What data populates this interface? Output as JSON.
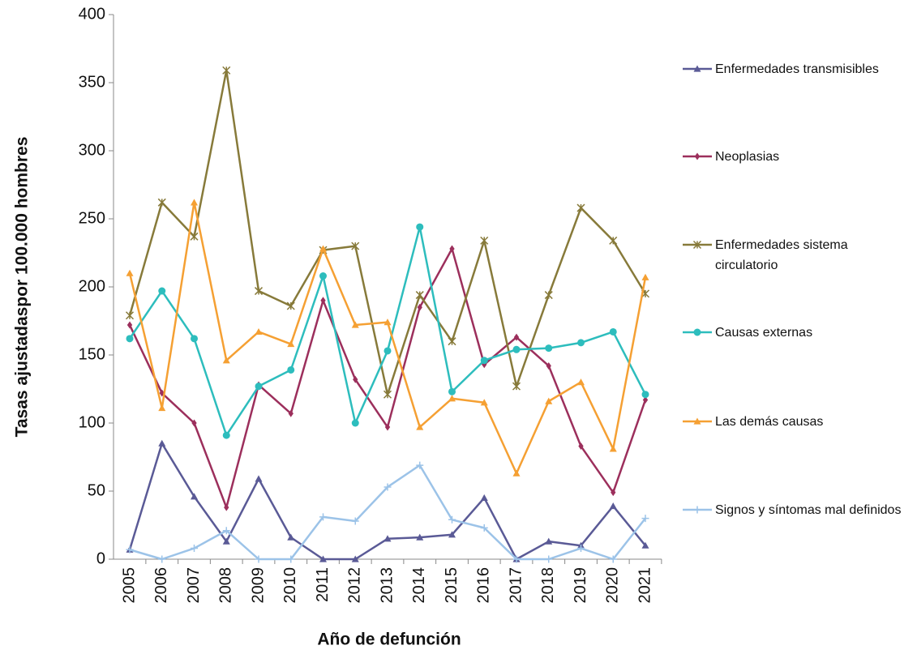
{
  "chart_data": {
    "type": "line",
    "x_label": "Año de defunción",
    "y_label": "Tasas ajustadaspor 100.000 hombres",
    "categories": [
      "2005",
      "2006",
      "2007",
      "2008",
      "2009",
      "2010",
      "2011",
      "2012",
      "2013",
      "2014",
      "2015",
      "2016",
      "2017",
      "2018",
      "2019",
      "2020",
      "2021"
    ],
    "ylim": [
      0,
      400
    ],
    "yticks": [
      0,
      50,
      100,
      150,
      200,
      250,
      300,
      350,
      400
    ],
    "grid": false,
    "legend": "right",
    "series": [
      {
        "name": "Enfermedades transmisibles",
        "color": "#5a5a96",
        "marker": "triangle",
        "values": [
          7,
          85,
          46,
          13,
          59,
          16,
          0,
          0,
          15,
          16,
          18,
          45,
          0,
          13,
          10,
          39,
          10
        ]
      },
      {
        "name": "Neoplasias",
        "color": "#9c2f5c",
        "marker": "diamond",
        "values": [
          172,
          122,
          100,
          38,
          128,
          107,
          190,
          132,
          97,
          185,
          228,
          143,
          163,
          142,
          83,
          49,
          117
        ]
      },
      {
        "name": "Enfermedades sistema circulatorio",
        "color": "#877a3a",
        "marker": "asterisk",
        "values": [
          179,
          262,
          237,
          359,
          197,
          186,
          227,
          230,
          121,
          194,
          160,
          234,
          127,
          194,
          258,
          234,
          195
        ]
      },
      {
        "name": "Causas externas",
        "color": "#2dbdbd",
        "marker": "circle",
        "values": [
          162,
          197,
          162,
          91,
          127,
          139,
          208,
          100,
          153,
          244,
          123,
          146,
          154,
          155,
          159,
          167,
          121
        ]
      },
      {
        "name": "Las demás causas",
        "color": "#f5a033",
        "marker": "triangle",
        "values": [
          210,
          111,
          262,
          146,
          167,
          158,
          228,
          172,
          174,
          97,
          118,
          115,
          63,
          116,
          130,
          81,
          207
        ]
      },
      {
        "name": "Signos y síntomas mal definidos",
        "color": "#9cc3e8",
        "marker": "plus",
        "values": [
          7,
          0,
          8,
          21,
          0,
          0,
          31,
          28,
          53,
          69,
          29,
          23,
          0,
          0,
          8,
          0,
          30
        ]
      }
    ]
  }
}
